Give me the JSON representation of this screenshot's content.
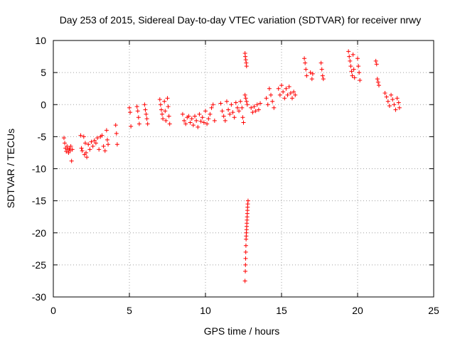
{
  "chart_data": {
    "type": "scatter",
    "title": "Day 253 of 2015, Sidereal Day-to-day VTEC variation (SDTVAR) for receiver nrwy",
    "xlabel": "GPS time / hours",
    "ylabel": "SDTVAR / TECUs",
    "xlim": [
      0,
      25
    ],
    "ylim": [
      -30,
      10
    ],
    "xticks": [
      "0",
      "5",
      "10",
      "15",
      "20",
      "25"
    ],
    "yticks": [
      "-30",
      "-25",
      "-20",
      "-15",
      "-10",
      "-5",
      "0",
      "5",
      "10"
    ],
    "grid": true,
    "marker": "+",
    "color": "#ff0000",
    "series": [
      {
        "name": "SDTVAR",
        "points": [
          [
            0.7,
            -5.2
          ],
          [
            0.75,
            -6.0
          ],
          [
            0.8,
            -6.8
          ],
          [
            0.85,
            -7.3
          ],
          [
            0.9,
            -6.5
          ],
          [
            0.95,
            -7.0
          ],
          [
            1.0,
            -7.5
          ],
          [
            1.05,
            -6.8
          ],
          [
            1.1,
            -7.2
          ],
          [
            1.15,
            -6.5
          ],
          [
            1.2,
            -8.8
          ],
          [
            1.25,
            -7.0
          ],
          [
            1.8,
            -4.8
          ],
          [
            1.85,
            -6.8
          ],
          [
            1.9,
            -7.2
          ],
          [
            2.0,
            -5.0
          ],
          [
            2.05,
            -7.8
          ],
          [
            2.1,
            -6.0
          ],
          [
            2.15,
            -7.5
          ],
          [
            2.2,
            -8.2
          ],
          [
            2.3,
            -6.2
          ],
          [
            2.4,
            -7.0
          ],
          [
            2.5,
            -5.8
          ],
          [
            2.6,
            -6.5
          ],
          [
            2.7,
            -5.6
          ],
          [
            2.8,
            -6.0
          ],
          [
            2.9,
            -5.2
          ],
          [
            3.0,
            -7.0
          ],
          [
            3.1,
            -5.0
          ],
          [
            3.2,
            -4.8
          ],
          [
            3.3,
            -6.5
          ],
          [
            3.4,
            -7.2
          ],
          [
            3.5,
            -4.0
          ],
          [
            3.55,
            -5.5
          ],
          [
            3.6,
            -6.2
          ],
          [
            4.1,
            -3.2
          ],
          [
            4.15,
            -4.5
          ],
          [
            4.2,
            -6.2
          ],
          [
            5.0,
            -0.5
          ],
          [
            5.05,
            -1.2
          ],
          [
            5.1,
            -3.4
          ],
          [
            5.5,
            -0.3
          ],
          [
            5.55,
            -1.0
          ],
          [
            5.6,
            -2.0
          ],
          [
            5.65,
            -3.0
          ],
          [
            6.0,
            0.0
          ],
          [
            6.05,
            -0.8
          ],
          [
            6.1,
            -1.5
          ],
          [
            6.15,
            -2.2
          ],
          [
            6.2,
            -3.0
          ],
          [
            7.0,
            0.8
          ],
          [
            7.05,
            0.0
          ],
          [
            7.1,
            -0.8
          ],
          [
            7.15,
            -1.5
          ],
          [
            7.2,
            -2.2
          ],
          [
            7.3,
            0.5
          ],
          [
            7.35,
            -1.0
          ],
          [
            7.4,
            -2.5
          ],
          [
            7.5,
            1.0
          ],
          [
            7.55,
            -0.3
          ],
          [
            7.6,
            -1.8
          ],
          [
            7.65,
            -3.0
          ],
          [
            8.5,
            -1.5
          ],
          [
            8.6,
            -2.5
          ],
          [
            8.7,
            -3.0
          ],
          [
            8.8,
            -2.0
          ],
          [
            8.9,
            -1.8
          ],
          [
            9.0,
            -2.8
          ],
          [
            9.1,
            -2.2
          ],
          [
            9.2,
            -3.2
          ],
          [
            9.3,
            -1.8
          ],
          [
            9.4,
            -2.5
          ],
          [
            9.5,
            -3.5
          ],
          [
            9.6,
            -1.5
          ],
          [
            9.7,
            -2.6
          ],
          [
            9.8,
            -2.0
          ],
          [
            9.9,
            -2.8
          ],
          [
            10.0,
            -1.0
          ],
          [
            10.1,
            -3.0
          ],
          [
            10.2,
            -2.2
          ],
          [
            10.3,
            -1.5
          ],
          [
            10.4,
            -0.5
          ],
          [
            10.5,
            0.0
          ],
          [
            10.6,
            -2.5
          ],
          [
            11.0,
            0.2
          ],
          [
            11.1,
            -1.0
          ],
          [
            11.2,
            -1.8
          ],
          [
            11.3,
            -2.5
          ],
          [
            11.4,
            0.5
          ],
          [
            11.5,
            -0.8
          ],
          [
            11.6,
            -1.5
          ],
          [
            11.7,
            0.0
          ],
          [
            11.8,
            -1.2
          ],
          [
            11.9,
            -2.0
          ],
          [
            12.0,
            0.3
          ],
          [
            12.1,
            -0.5
          ],
          [
            12.2,
            -1.0
          ],
          [
            12.3,
            0.5
          ],
          [
            12.4,
            -0.5
          ],
          [
            12.45,
            -2.0
          ],
          [
            12.5,
            -2.8
          ],
          [
            12.6,
            8.0
          ],
          [
            12.62,
            7.5
          ],
          [
            12.65,
            7.0
          ],
          [
            12.68,
            6.5
          ],
          [
            12.7,
            6.0
          ],
          [
            12.6,
            1.5
          ],
          [
            12.65,
            1.0
          ],
          [
            12.7,
            0.5
          ],
          [
            12.75,
            0.0
          ],
          [
            12.6,
            -27.5
          ],
          [
            12.62,
            -26.0
          ],
          [
            12.63,
            -25.0
          ],
          [
            12.64,
            -24.0
          ],
          [
            12.65,
            -23.0
          ],
          [
            12.66,
            -22.0
          ],
          [
            12.67,
            -21.0
          ],
          [
            12.68,
            -20.5
          ],
          [
            12.69,
            -20.0
          ],
          [
            12.7,
            -19.5
          ],
          [
            12.71,
            -19.0
          ],
          [
            12.72,
            -18.5
          ],
          [
            12.73,
            -18.0
          ],
          [
            12.74,
            -17.5
          ],
          [
            12.75,
            -17.0
          ],
          [
            12.76,
            -16.5
          ],
          [
            12.77,
            -16.0
          ],
          [
            12.78,
            -15.5
          ],
          [
            12.8,
            -15.0
          ],
          [
            13.0,
            -0.5
          ],
          [
            13.1,
            -1.2
          ],
          [
            13.2,
            -0.3
          ],
          [
            13.3,
            -1.0
          ],
          [
            13.4,
            0.0
          ],
          [
            13.5,
            -0.8
          ],
          [
            13.6,
            0.2
          ],
          [
            14.0,
            1.0
          ],
          [
            14.1,
            0.0
          ],
          [
            14.2,
            2.5
          ],
          [
            14.3,
            1.5
          ],
          [
            14.4,
            0.5
          ],
          [
            14.5,
            -0.5
          ],
          [
            14.8,
            2.5
          ],
          [
            14.9,
            1.5
          ],
          [
            15.0,
            3.0
          ],
          [
            15.1,
            2.0
          ],
          [
            15.2,
            1.0
          ],
          [
            15.3,
            2.5
          ],
          [
            15.4,
            1.5
          ],
          [
            15.5,
            2.8
          ],
          [
            15.6,
            1.8
          ],
          [
            15.7,
            1.0
          ],
          [
            15.8,
            2.0
          ],
          [
            15.9,
            1.5
          ],
          [
            16.5,
            7.2
          ],
          [
            16.55,
            6.5
          ],
          [
            16.6,
            5.5
          ],
          [
            16.65,
            4.5
          ],
          [
            16.9,
            5.0
          ],
          [
            17.0,
            4.0
          ],
          [
            17.05,
            4.8
          ],
          [
            17.6,
            6.5
          ],
          [
            17.65,
            5.5
          ],
          [
            17.7,
            4.5
          ],
          [
            17.75,
            4.0
          ],
          [
            19.4,
            8.3
          ],
          [
            19.45,
            7.5
          ],
          [
            19.5,
            6.8
          ],
          [
            19.55,
            6.0
          ],
          [
            19.6,
            5.2
          ],
          [
            19.65,
            4.5
          ],
          [
            19.7,
            7.8
          ],
          [
            19.75,
            5.5
          ],
          [
            19.8,
            4.2
          ],
          [
            20.0,
            7.2
          ],
          [
            20.05,
            6.0
          ],
          [
            20.1,
            5.0
          ],
          [
            20.15,
            3.8
          ],
          [
            21.2,
            6.8
          ],
          [
            21.25,
            6.3
          ],
          [
            21.3,
            4.0
          ],
          [
            21.35,
            3.5
          ],
          [
            21.4,
            3.0
          ],
          [
            21.8,
            1.8
          ],
          [
            21.9,
            1.2
          ],
          [
            22.0,
            0.5
          ],
          [
            22.1,
            -0.2
          ],
          [
            22.2,
            1.5
          ],
          [
            22.3,
            0.8
          ],
          [
            22.4,
            0.0
          ],
          [
            22.5,
            -0.8
          ],
          [
            22.6,
            1.0
          ],
          [
            22.7,
            0.3
          ],
          [
            22.75,
            -0.5
          ]
        ]
      }
    ]
  }
}
